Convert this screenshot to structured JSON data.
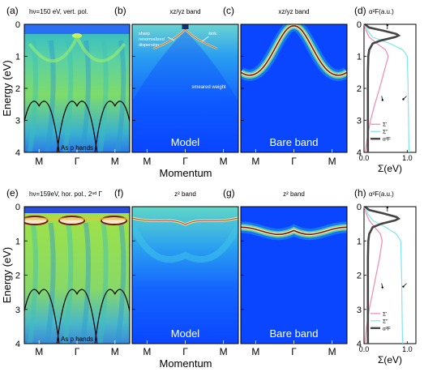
{
  "chart_data": {
    "type": "heatmap",
    "axes": {
      "ylabel": "Energy (eV)",
      "xlabel": "Momentum",
      "sigma_xlabel": "Σ(eV)",
      "yticks": [
        "0",
        "1",
        "2",
        "3",
        "4"
      ],
      "ylim": [
        4,
        0
      ],
      "kticks": [
        "M",
        "Γ",
        "M"
      ],
      "sigma_xticks": [
        "0.0",
        "1.0"
      ],
      "sigma_xlim": [
        0,
        1.2
      ]
    },
    "rows": [
      {
        "panels": [
          {
            "letter": "(a)",
            "title": "hν=150 eV, vert. pol.",
            "kind": "exp1",
            "sub": "",
            "notes": [
              "As p bands"
            ]
          },
          {
            "letter": "(b)",
            "title": "xz/yz band",
            "kind": "model1",
            "sub": "Model",
            "notes": [
              "sharp renormalized dispersion",
              "kink",
              "smeared weight"
            ]
          },
          {
            "letter": "(c)",
            "title": "xz/yz band",
            "kind": "bare1",
            "sub": "Bare band",
            "notes": []
          },
          {
            "letter": "(d)",
            "title": "α²F(a.u.)",
            "kind": "sigma",
            "sub": "",
            "notes": [
              "Σ'",
              "Σ''",
              "α²F"
            ]
          }
        ],
        "sigma_real": [
          [
            0,
            0
          ],
          [
            0.2,
            0.05
          ],
          [
            0.4,
            0.12
          ],
          [
            0.6,
            0.3
          ],
          [
            0.8,
            0.5
          ],
          [
            1.0,
            0.56
          ],
          [
            1.5,
            0.46
          ],
          [
            2.0,
            0.36
          ],
          [
            2.5,
            0.25
          ],
          [
            3.0,
            0.15
          ],
          [
            3.5,
            0.08
          ],
          [
            4.0,
            0.03
          ]
        ],
        "sigma_imag": [
          [
            0,
            0.05
          ],
          [
            0.2,
            0.08
          ],
          [
            0.4,
            0.2
          ],
          [
            0.6,
            0.6
          ],
          [
            0.8,
            0.9
          ],
          [
            1.0,
            1.0
          ],
          [
            2.0,
            1.02
          ],
          [
            3.0,
            1.03
          ],
          [
            4.0,
            1.04
          ]
        ],
        "alpha2F": [
          [
            0,
            0.02
          ],
          [
            0.1,
            0.12
          ],
          [
            0.2,
            0.45
          ],
          [
            0.3,
            0.75
          ],
          [
            0.35,
            0.8
          ],
          [
            0.4,
            0.72
          ],
          [
            0.5,
            0.4
          ],
          [
            0.6,
            0.2
          ],
          [
            0.8,
            0.12
          ],
          [
            1.0,
            0.1
          ],
          [
            1.5,
            0.09
          ],
          [
            2.0,
            0.09
          ],
          [
            3.0,
            0.09
          ],
          [
            4.0,
            0.09
          ]
        ]
      },
      {
        "panels": [
          {
            "letter": "(e)",
            "title": "hν=159eV, hor. pol., 2ⁿᵈ Γ",
            "kind": "exp2",
            "sub": "",
            "notes": [
              "As p bands"
            ]
          },
          {
            "letter": "(f)",
            "title": "z² band",
            "kind": "model2",
            "sub": "Model",
            "notes": []
          },
          {
            "letter": "(g)",
            "title": "z² band",
            "kind": "bare2",
            "sub": "Bare band",
            "notes": []
          },
          {
            "letter": "(h)",
            "title": "α²F(a.u.)",
            "kind": "sigma",
            "sub": "",
            "notes": [
              "Σ'",
              "Σ''",
              "α²F"
            ]
          }
        ],
        "sigma_real": [
          [
            0,
            0
          ],
          [
            0.2,
            0.05
          ],
          [
            0.4,
            0.12
          ],
          [
            0.6,
            0.25
          ],
          [
            0.8,
            0.38
          ],
          [
            1.0,
            0.42
          ],
          [
            1.5,
            0.36
          ],
          [
            2.0,
            0.28
          ],
          [
            2.5,
            0.2
          ],
          [
            3.0,
            0.12
          ],
          [
            3.5,
            0.06
          ],
          [
            4.0,
            0.02
          ]
        ],
        "sigma_imag": [
          [
            0,
            0.05
          ],
          [
            0.2,
            0.08
          ],
          [
            0.4,
            0.2
          ],
          [
            0.6,
            0.5
          ],
          [
            0.8,
            0.75
          ],
          [
            1.0,
            0.85
          ],
          [
            2.0,
            0.87
          ],
          [
            3.0,
            0.88
          ],
          [
            4.0,
            0.89
          ]
        ],
        "alpha2F": [
          [
            0,
            0.02
          ],
          [
            0.1,
            0.12
          ],
          [
            0.2,
            0.45
          ],
          [
            0.3,
            0.75
          ],
          [
            0.35,
            0.8
          ],
          [
            0.4,
            0.72
          ],
          [
            0.5,
            0.4
          ],
          [
            0.6,
            0.2
          ],
          [
            0.8,
            0.12
          ],
          [
            1.0,
            0.1
          ],
          [
            1.5,
            0.09
          ],
          [
            2.0,
            0.09
          ],
          [
            3.0,
            0.09
          ],
          [
            4.0,
            0.09
          ]
        ]
      }
    ]
  },
  "colors": {
    "background": "#0a46ff",
    "frame": "#000000",
    "sigma_real": "#f08ab0",
    "sigma_imag": "#7fe6ee",
    "alpha2F": "#444444",
    "band_peak": "#7a1818"
  }
}
